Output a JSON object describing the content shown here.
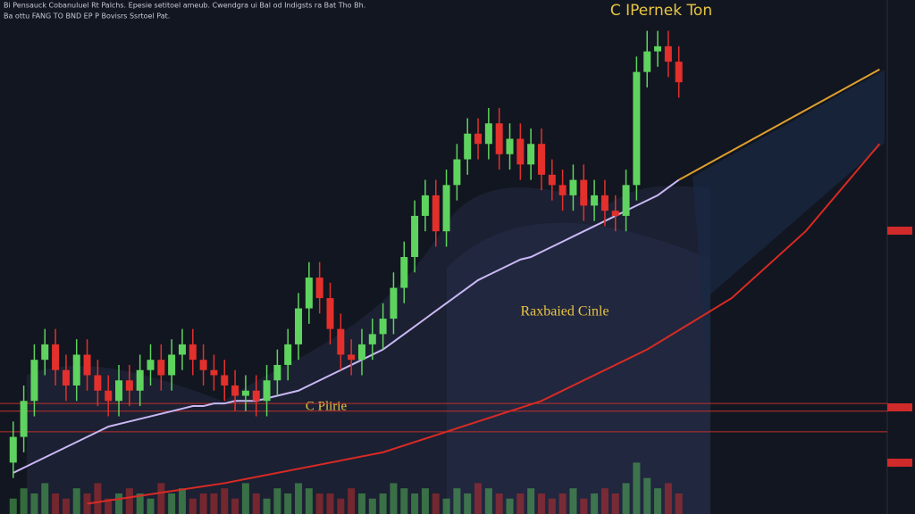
{
  "chart_data": {
    "type": "candlestick",
    "title": "C IPernek Ton",
    "header": [
      "Bi Pensauck  Cobanuluel Rt Palchs. Epesie setitoel ameub. Cwendgra ui Bal od Indigsts ra Bat Tho Bh.",
      "Ba ottu FANG TO BND EP P Bovisrs Ssrtoel Pat."
    ],
    "annotations": [
      "Raxbaied Cinle",
      "C Plirie"
    ],
    "xlim": [
      -1.25,
      84
    ],
    "ylim": [
      0,
      100
    ],
    "open": [
      10,
      15,
      22,
      30,
      33,
      28,
      25,
      31,
      27,
      24,
      22,
      26,
      24,
      28,
      30,
      27,
      31,
      33,
      30,
      28,
      27,
      25,
      23,
      24,
      22,
      26,
      29,
      33,
      40,
      46,
      42,
      36,
      31,
      30,
      33,
      35,
      38,
      44,
      50,
      58,
      62,
      55,
      64,
      69,
      74,
      72,
      76,
      70,
      73,
      68,
      72,
      66,
      64,
      62,
      65,
      60,
      62,
      59,
      58,
      64,
      86,
      90,
      91,
      88
    ],
    "high": [
      18,
      25,
      33,
      36,
      36,
      31,
      34,
      34,
      30,
      27,
      29,
      29,
      31,
      33,
      33,
      34,
      36,
      36,
      33,
      31,
      30,
      28,
      27,
      27,
      29,
      32,
      36,
      43,
      49,
      49,
      45,
      39,
      34,
      36,
      38,
      41,
      47,
      53,
      61,
      65,
      65,
      67,
      72,
      77,
      77,
      79,
      79,
      76,
      76,
      75,
      75,
      69,
      67,
      68,
      68,
      65,
      65,
      62,
      67,
      89,
      94,
      94,
      94,
      91
    ],
    "low": [
      7,
      12,
      19,
      27,
      25,
      22,
      22,
      24,
      21,
      19,
      19,
      21,
      21,
      25,
      24,
      24,
      28,
      27,
      25,
      24,
      22,
      20,
      20,
      19,
      19,
      23,
      26,
      30,
      37,
      39,
      33,
      28,
      27,
      27,
      30,
      32,
      35,
      41,
      47,
      55,
      52,
      52,
      61,
      66,
      69,
      69,
      67,
      67,
      65,
      65,
      63,
      61,
      59,
      59,
      57,
      57,
      56,
      55,
      55,
      61,
      83,
      87,
      85,
      81
    ],
    "close": [
      15,
      22,
      30,
      33,
      28,
      25,
      31,
      27,
      24,
      22,
      26,
      24,
      28,
      30,
      27,
      31,
      33,
      30,
      28,
      27,
      25,
      23,
      24,
      22,
      26,
      29,
      33,
      40,
      46,
      42,
      36,
      31,
      30,
      33,
      35,
      38,
      44,
      50,
      58,
      62,
      55,
      64,
      69,
      74,
      72,
      76,
      70,
      73,
      68,
      72,
      66,
      64,
      62,
      65,
      60,
      62,
      59,
      58,
      64,
      86,
      90,
      91,
      88,
      84
    ],
    "volume": [
      3,
      5,
      4,
      6,
      4,
      3,
      5,
      4,
      6,
      3,
      4,
      5,
      4,
      3,
      6,
      4,
      5,
      3,
      4,
      4,
      5,
      3,
      6,
      4,
      3,
      5,
      4,
      6,
      5,
      4,
      4,
      3,
      5,
      4,
      3,
      4,
      6,
      5,
      4,
      5,
      4,
      3,
      5,
      4,
      6,
      5,
      4,
      3,
      4,
      5,
      4,
      3,
      4,
      5,
      3,
      4,
      5,
      4,
      6,
      10,
      7,
      5,
      6,
      4
    ],
    "up_color": "#5fd35f",
    "down_color": "#e3302c",
    "lines": [
      {
        "color": "#c9b8f5",
        "values": [
          8,
          9,
          10,
          11,
          12,
          13,
          14,
          15,
          16,
          17,
          17.5,
          18,
          18.5,
          19,
          19.5,
          20,
          20.5,
          21,
          21,
          21.5,
          21.5,
          22,
          22,
          22,
          22.5,
          23,
          23.5,
          24,
          25,
          26,
          27,
          28,
          29,
          30,
          31,
          32,
          33.5,
          35,
          36.5,
          38,
          39.5,
          41,
          42.5,
          44,
          45.5,
          46.5,
          47.5,
          48.5,
          49.5,
          50,
          51,
          52,
          53,
          54,
          55,
          56,
          57,
          58,
          59,
          60,
          61,
          62,
          63.5,
          65
        ]
      },
      {
        "color": "#d92a24",
        "x": [
          7,
          20,
          35,
          50,
          60,
          68,
          75,
          82
        ],
        "values": [
          2,
          6,
          12,
          22,
          32,
          42,
          55,
          72
        ]
      },
      {
        "color": "#e0a030",
        "x": [
          63,
          82
        ],
        "values": [
          65,
          86.5
        ]
      }
    ],
    "hlines": [
      {
        "value": 21.5,
        "color": "#c0302c"
      },
      {
        "value": 20,
        "color": "#c0302c"
      },
      {
        "value": 16,
        "color": "#c0302c"
      }
    ]
  }
}
